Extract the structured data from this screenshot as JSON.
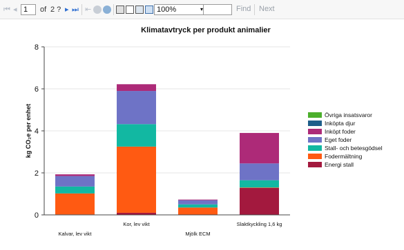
{
  "toolbar": {
    "page_current": "1",
    "page_of_label": "of",
    "page_total": "2 ?",
    "zoom": "100%",
    "zoom_options": [
      "100%"
    ],
    "search_value": "",
    "find_label": "Find",
    "next_label": "Next",
    "first_page_icon": "first-page-icon",
    "prev_page_icon": "prev-page-icon",
    "next_page_icon": "next-page-icon",
    "last_page_icon": "last-page-icon",
    "back_icon": "back-icon",
    "stop_icon": "stop-icon",
    "refresh_icon": "refresh-icon",
    "print_icon": "print-icon",
    "layout_icon": "page-layout-icon",
    "setup_icon": "page-setup-icon",
    "export_icon": "export-icon"
  },
  "chart_data": {
    "type": "bar",
    "stacked": true,
    "title": "Klimatavtryck per produkt animalier",
    "xlabel": "",
    "ylabel": "kg CO₂e per enhet",
    "ylim": [
      0,
      8
    ],
    "yticks": [
      0,
      2,
      4,
      6,
      8
    ],
    "grid": true,
    "legend_position": "right",
    "categories": [
      "Kalvar, lev vikt",
      "Kor, lev vikt",
      "Mjölk  ECM",
      "Slaktkyckling 1,6 kg"
    ],
    "series": [
      {
        "name": "Energi stall",
        "color": "#a3193e",
        "values": [
          0.02,
          0.1,
          0.0,
          1.28
        ]
      },
      {
        "name": "Fodermältning",
        "color": "#ff5a12",
        "values": [
          1.0,
          3.15,
          0.35,
          0.02
        ]
      },
      {
        "name": "Stall- och betesgödsel",
        "color": "#12b8a2",
        "values": [
          0.33,
          1.07,
          0.15,
          0.35
        ]
      },
      {
        "name": "Eget foder",
        "color": "#6e73c6",
        "values": [
          0.5,
          1.58,
          0.2,
          0.8
        ]
      },
      {
        "name": "Inköpt foder",
        "color": "#ad2a78",
        "values": [
          0.08,
          0.32,
          0.03,
          1.45
        ]
      },
      {
        "name": "Inköpta djur",
        "color": "#1e5e8a",
        "values": [
          0,
          0,
          0,
          0
        ]
      },
      {
        "name": "Övriga insatsvaror",
        "color": "#4caf2c",
        "values": [
          0,
          0,
          0,
          0
        ]
      }
    ]
  }
}
